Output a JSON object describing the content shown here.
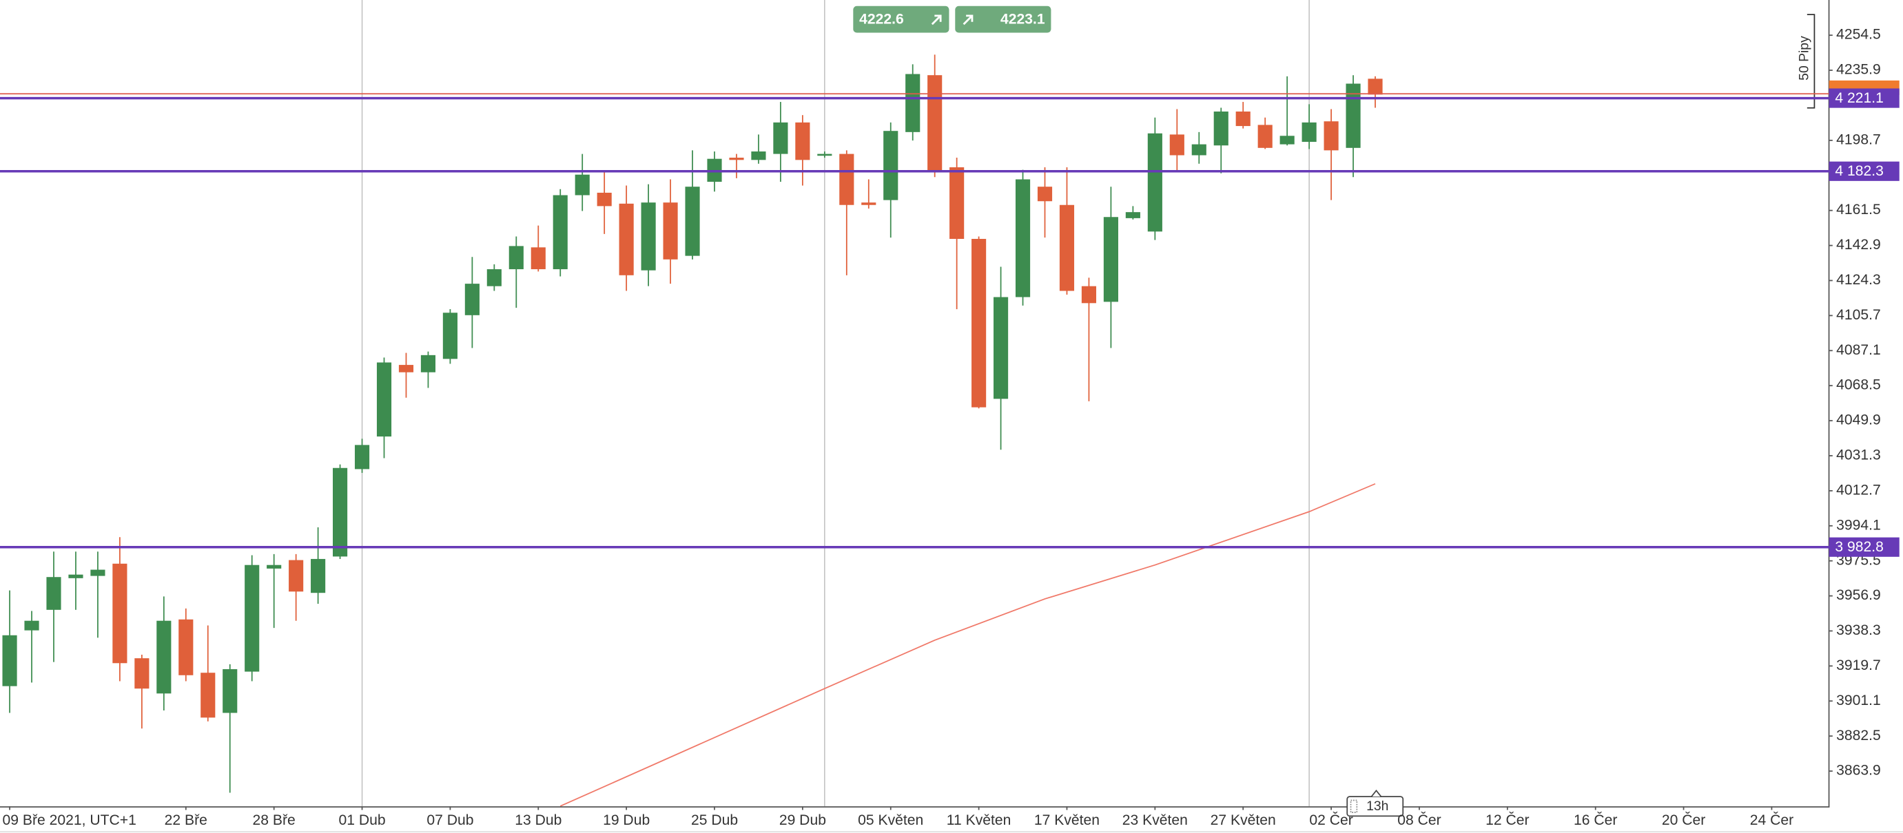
{
  "chart_data": {
    "type": "candlestick",
    "open": [
      3909.0,
      3938.6,
      3949.5,
      3966.3,
      3967.5,
      3974.0,
      3923.8,
      3905.1,
      3944.4,
      3916.1,
      3894.8,
      3916.7,
      3971.4,
      3975.9,
      3958.5,
      3977.8,
      4024.2,
      4041.5,
      4079.5,
      4075.6,
      4082.7,
      4105.9,
      4121.3,
      4130.3,
      4141.9,
      4130.3,
      4169.6,
      4170.9,
      4165.1,
      4129.7,
      4165.7,
      4137.4,
      4176.7,
      4189.5,
      4188.3,
      4191.5,
      4208.2,
      4190.8,
      4191.5,
      4165.7,
      4167.0,
      4203.1,
      4233.3,
      4184.4,
      4146.4,
      4061.5,
      4115.5,
      4174.1,
      4164.4,
      4121.3,
      4113.0,
      4157.4,
      4150.3,
      4201.8,
      4190.8,
      4196.0,
      4214.0,
      4206.9,
      4196.6,
      4197.9,
      4208.8,
      4194.7,
      4231.4
    ],
    "high": [
      3959.8,
      3948.9,
      3980.4,
      3980.4,
      3980.4,
      3988.1,
      3925.7,
      3956.6,
      3950.2,
      3941.2,
      3920.6,
      3978.5,
      3979.1,
      3979.1,
      3993.3,
      4026.7,
      4040.3,
      4083.4,
      4085.9,
      4086.6,
      4109.1,
      4136.8,
      4132.9,
      4147.7,
      4153.5,
      4172.8,
      4191.5,
      4182.5,
      4174.7,
      4175.4,
      4178.0,
      4193.4,
      4192.8,
      4191.5,
      4201.8,
      4219.1,
      4212.1,
      4192.8,
      4193.4,
      4178.0,
      4208.2,
      4239.1,
      4244.2,
      4189.5,
      4147.7,
      4131.6,
      4183.1,
      4184.4,
      4184.4,
      4125.8,
      4174.1,
      4163.8,
      4210.8,
      4215.3,
      4203.1,
      4216.0,
      4219.1,
      4210.8,
      4232.7,
      4217.9,
      4215.3,
      4233.3,
      4232.7
    ],
    "low": [
      3894.8,
      3910.9,
      3921.8,
      3949.5,
      3934.7,
      3911.6,
      3886.5,
      3896.1,
      3911.6,
      3890.3,
      3852.4,
      3911.6,
      3939.9,
      3943.7,
      3952.7,
      3976.5,
      4022.2,
      4030.0,
      4062.1,
      4067.3,
      4080.1,
      4088.5,
      4118.8,
      4109.8,
      4129.1,
      4126.5,
      4161.2,
      4149.0,
      4118.8,
      4121.3,
      4122.6,
      4135.5,
      4171.5,
      4178.6,
      4186.3,
      4176.7,
      4174.7,
      4189.5,
      4127.1,
      4162.5,
      4147.1,
      4198.6,
      4179.2,
      4109.1,
      4056.4,
      4034.5,
      4111.0,
      4147.1,
      4116.8,
      4060.2,
      4088.5,
      4156.7,
      4145.8,
      4182.5,
      4186.3,
      4181.2,
      4205.0,
      4194.1,
      4196.0,
      4194.1,
      4167.0,
      4179.2,
      4216.0
    ],
    "close": [
      3936.0,
      3943.7,
      3966.9,
      3968.2,
      3970.8,
      3921.2,
      3907.7,
      3943.7,
      3914.8,
      3892.3,
      3918.0,
      3973.3,
      3973.3,
      3959.2,
      3976.5,
      4024.8,
      4037.0,
      4080.8,
      4075.6,
      4084.7,
      4107.2,
      4122.6,
      4130.3,
      4142.6,
      4130.3,
      4169.6,
      4180.5,
      4163.8,
      4127.1,
      4165.7,
      4135.5,
      4174.1,
      4188.9,
      4188.3,
      4192.8,
      4208.2,
      4188.3,
      4191.5,
      4164.4,
      4164.4,
      4203.7,
      4233.9,
      4181.8,
      4146.4,
      4057.0,
      4115.5,
      4178.0,
      4166.4,
      4118.8,
      4112.3,
      4158.0,
      4160.6,
      4202.4,
      4190.8,
      4196.6,
      4214.0,
      4206.3,
      4194.7,
      4201.1,
      4208.2,
      4193.4,
      4228.8,
      4223.0
    ],
    "up_color": "#3d8c4f",
    "down_color": "#e0603a",
    "xlim": [
      -0.44,
      82.6
    ],
    "xticks": [
      {
        "value": 0,
        "label": "09 Bře 2021, UTC+1"
      },
      {
        "value": 8,
        "label": "22 Bře"
      },
      {
        "value": 12,
        "label": "28 Bře"
      },
      {
        "value": 16,
        "label": "01 Dub"
      },
      {
        "value": 20,
        "label": "07 Dub"
      },
      {
        "value": 24,
        "label": "13 Dub"
      },
      {
        "value": 28,
        "label": "19 Dub"
      },
      {
        "value": 32,
        "label": "25 Dub"
      },
      {
        "value": 36,
        "label": "29 Dub"
      },
      {
        "value": 40,
        "label": "05 Květen"
      },
      {
        "value": 44,
        "label": "11 Květen"
      },
      {
        "value": 48,
        "label": "17 Květen"
      },
      {
        "value": 52,
        "label": "23 Květen"
      },
      {
        "value": 56,
        "label": "27 Květen"
      },
      {
        "value": 60,
        "label": "02 Čer"
      },
      {
        "value": 64,
        "label": "08 Čer"
      },
      {
        "value": 68,
        "label": "12 Čer"
      },
      {
        "value": 72,
        "label": "16 Čer"
      },
      {
        "value": 76,
        "label": "20 Čer"
      },
      {
        "value": 80,
        "label": "24 Čer"
      }
    ],
    "vlines": [
      16,
      37,
      59
    ],
    "ylim": [
      3845.2,
      4273.2
    ],
    "yticks": [
      4254.5,
      4235.9,
      4198.7,
      4161.5,
      4142.9,
      4124.3,
      4105.7,
      4087.1,
      4068.5,
      4049.9,
      4031.3,
      4012.7,
      3994.1,
      3975.5,
      3956.9,
      3938.3,
      3919.7,
      3901.1,
      3882.5,
      3863.9
    ],
    "grid": false,
    "ma": {
      "color": "#f07868",
      "x": [
        25,
        37,
        42,
        47,
        52,
        59,
        62
      ],
      "values": [
        3845.3,
        3907.7,
        3933.4,
        3955.3,
        3973.3,
        4001.6,
        4016.4
      ]
    },
    "levels": [
      {
        "value": 4221.1,
        "label": "4 221.1"
      },
      {
        "value": 4182.3,
        "label": "4 182.3"
      },
      {
        "value": 3982.8,
        "label": "3 982.8"
      }
    ],
    "level_color": "#673ab7",
    "price_line": {
      "value": 4223.4,
      "color": "#e05a4a"
    }
  },
  "quote": {
    "sell": "4222.6",
    "buy": "4223.1"
  },
  "pip_range": "50 Pipy",
  "timeframe": "13h"
}
